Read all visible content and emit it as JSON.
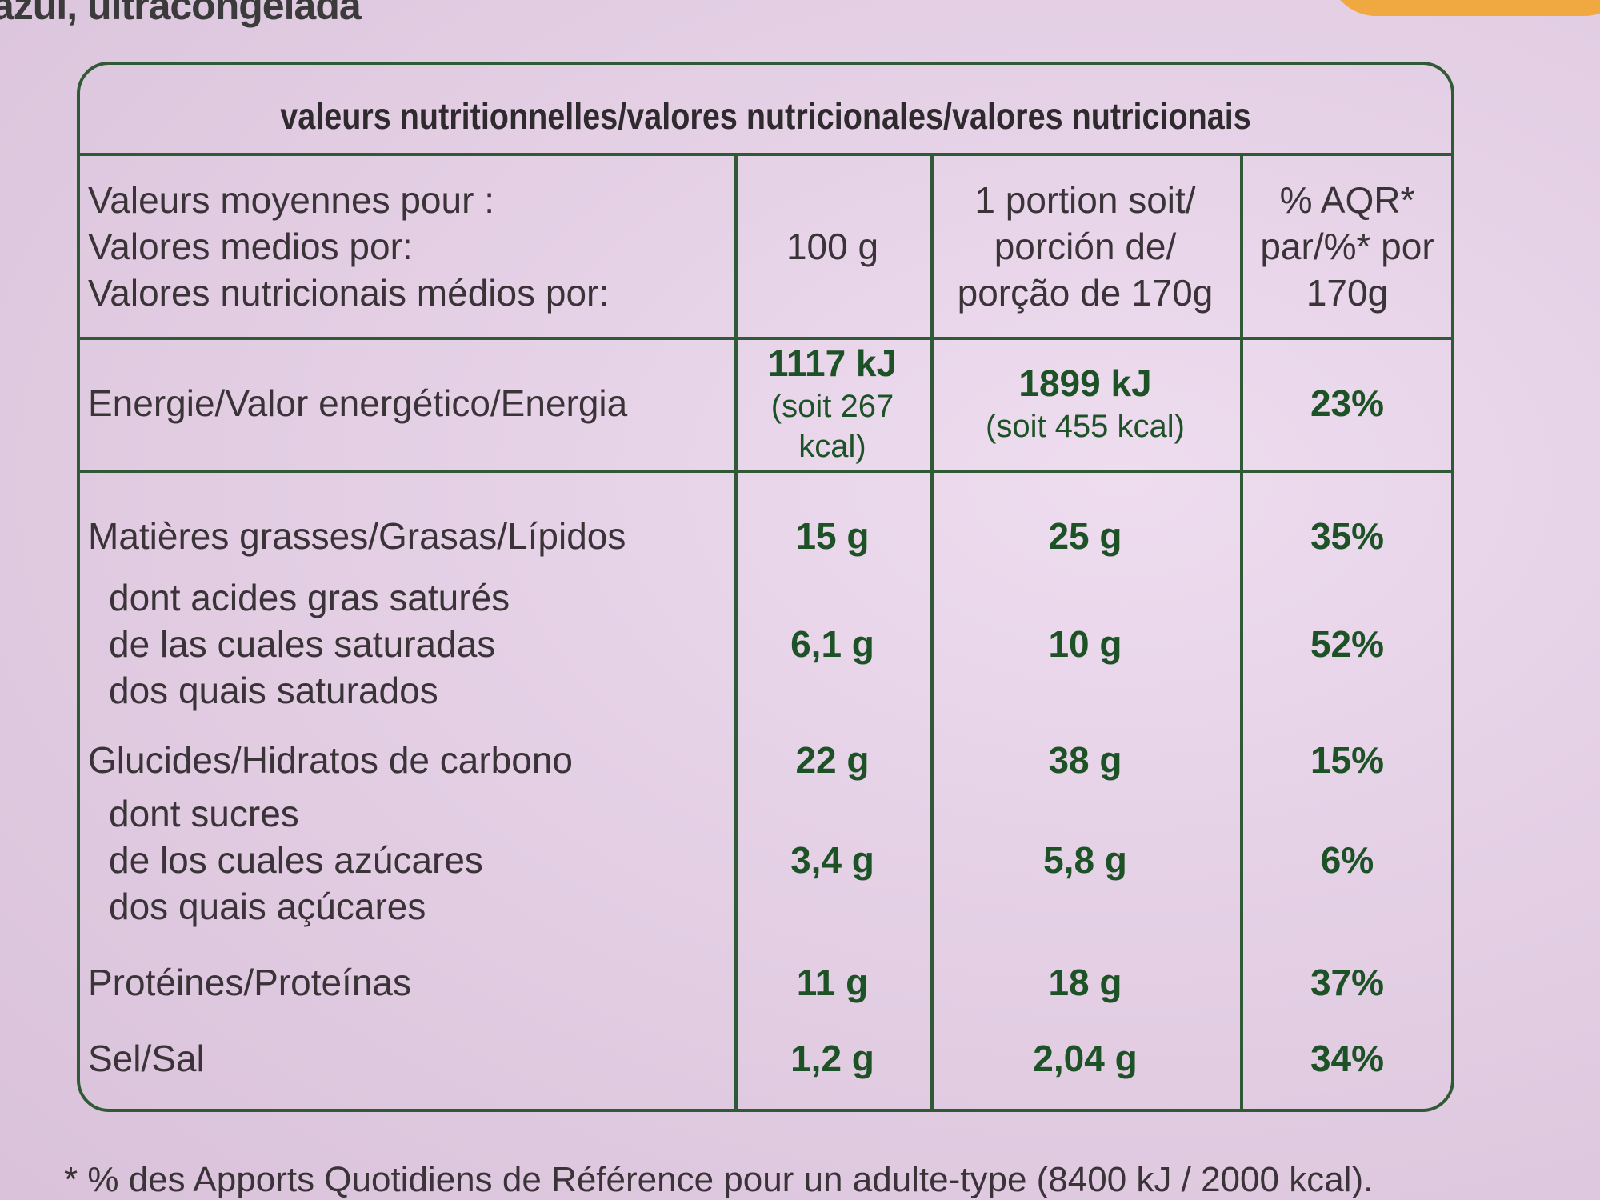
{
  "top_text": "azul, ultracongelada",
  "table": {
    "title": "valeurs nutritionnelles/valores nutricionales/valores nutricionais",
    "header": [
      [
        "Valeurs moyennes pour :",
        "Valores medios por:",
        "Valores nutricionais médios por:"
      ],
      [
        "100 g"
      ],
      [
        "1 portion soit/",
        "porción de/",
        "porção de 170g"
      ],
      [
        "% AQR*",
        "par/%* por",
        "170g"
      ]
    ],
    "rows": [
      [
        [
          "Energie/Valor energético/Energia"
        ],
        [
          "1117 kJ",
          "(soit 267 kcal)"
        ],
        [
          "1899 kJ",
          "(soit 455 kcal)"
        ],
        [
          "23%"
        ]
      ],
      [
        [
          "Matières grasses/Grasas/Lípidos"
        ],
        [
          "15 g"
        ],
        [
          "25 g"
        ],
        [
          "35%"
        ]
      ],
      [
        [
          "dont acides gras saturés",
          "de las cuales saturadas",
          "dos quais saturados"
        ],
        [
          "6,1 g"
        ],
        [
          "10 g"
        ],
        [
          "52%"
        ]
      ],
      [
        [
          "Glucides/Hidratos de carbono"
        ],
        [
          "22 g"
        ],
        [
          "38 g"
        ],
        [
          "15%"
        ]
      ],
      [
        [
          "dont sucres",
          "de los cuales azúcares",
          "dos quais açúcares"
        ],
        [
          "3,4 g"
        ],
        [
          "5,8 g"
        ],
        [
          "6%"
        ]
      ],
      [
        [
          "Protéines/Proteínas"
        ],
        [
          "11 g"
        ],
        [
          "18 g"
        ],
        [
          "37%"
        ]
      ],
      [
        [
          "Sel/Sal"
        ],
        [
          "1,2 g"
        ],
        [
          "2,04 g"
        ],
        [
          "34%"
        ]
      ]
    ]
  },
  "footnote": "* % des Apports Quotidiens de Référence pour un adulte-type (8400 kJ / 2000 kcal)."
}
